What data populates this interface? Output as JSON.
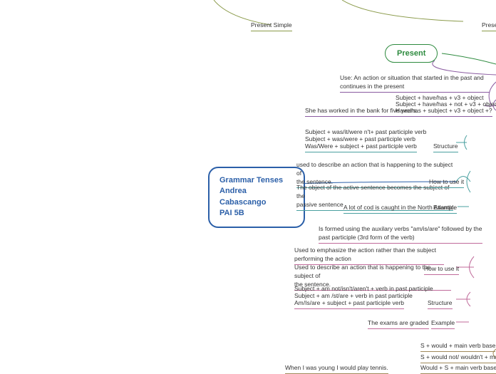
{
  "central": {
    "title1": "Grammar Tenses",
    "title2": "Andrea Cabascango",
    "title3": "PAI 5B"
  },
  "top": {
    "presentSimple": "Present Simple",
    "presentCut": "Prese",
    "present": "Present"
  },
  "perfect": {
    "use": "Use: An action or situation that started in the past and\ncontinues in the present",
    "example": "She has worked in the bank for five years.",
    "struct1": "Subject + have/has + v3 + object",
    "struct2": "Subject + have/has + not + v3 + object",
    "struct3": "Have/has + subject + v3 + object +?"
  },
  "passive1": {
    "s1": "Subject + was/it/were n't+ past participle verb",
    "s2": "Subject + was/were + past participle verb",
    "s3": "Was/Were + subject + past participle verb",
    "structureLabel": "Structure",
    "use1": "used to describe an action that is happening to the subject of\nthe sentence.",
    "use2": "The object of the active sentence becomes the subject of the\npassive sentence",
    "howLabel": "How to use it",
    "example": "A lot of cod is caught in the North Atlantic.",
    "exampleLabel": "Example"
  },
  "passive2": {
    "formed": "Is formed using the auxilary verbs \"am/is/are\" followed by the\npast participle (3rd form of the verb)",
    "use1": "Used to emphasize the action rather than the subject\nperforming the action",
    "use2": "Used to describe an action that is happening to the subject of\nthe sentence.",
    "howLabel": "How to use it",
    "s1": "Subject + am not/isn't/aren't + verb in past participle",
    "s2": "Subject + am /st/are + verb in past participle",
    "s3": "Am/Is/are + subject + past participle verb",
    "structureLabel": "Structure",
    "example": "The exams are graded",
    "exampleLabel": "Example"
  },
  "bottom": {
    "b1": "S + would + main verb base",
    "b2": "S + would not/ wouldn't + ma",
    "b3": "Would + S + main verb base",
    "b4": "When I was young I would play tennis."
  },
  "colors": {
    "centralBlue": "#2b5fa8",
    "green": "#2d8a3e",
    "purple": "#8a5aa0",
    "blue": "#4a7bb8",
    "teal": "#4aa0a0",
    "olive": "#8a9a4a",
    "pink": "#c06a9a",
    "brown": "#a08a5a"
  }
}
